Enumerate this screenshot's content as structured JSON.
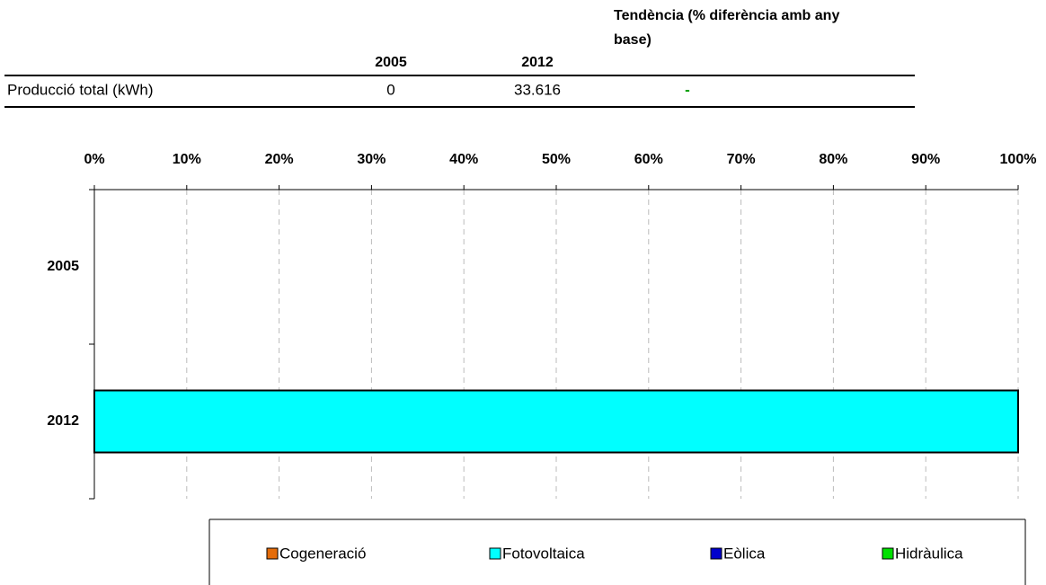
{
  "table": {
    "columns": [
      "2005",
      "2012",
      "Tendència (% diferència amb any base)"
    ],
    "rows": [
      [
        "Producció total (kWh)",
        "0",
        "33.616",
        "-"
      ]
    ]
  },
  "chart_data": {
    "type": "stacked_bar_horizontal",
    "categories": [
      "2005",
      "2012"
    ],
    "series": [
      {
        "name": "Cogeneració",
        "color": "#e46c0a",
        "values": [
          0,
          0
        ]
      },
      {
        "name": "Fotovoltaica",
        "color": "#00ffff",
        "values": [
          0,
          100
        ]
      },
      {
        "name": "Eòlica",
        "color": "#0000cc",
        "values": [
          0,
          0
        ]
      },
      {
        "name": "Hidràulica",
        "color": "#00e000",
        "values": [
          0,
          0
        ]
      }
    ],
    "xlim": [
      0,
      100
    ],
    "xticks": [
      {
        "value": 0,
        "label": "0%"
      },
      {
        "value": 10,
        "label": "10%"
      },
      {
        "value": 20,
        "label": "20%"
      },
      {
        "value": 30,
        "label": "30%"
      },
      {
        "value": 40,
        "label": "40%"
      },
      {
        "value": 50,
        "label": "50%"
      },
      {
        "value": 60,
        "label": "60%"
      },
      {
        "value": 70,
        "label": "70%"
      },
      {
        "value": 80,
        "label": "80%"
      },
      {
        "value": 90,
        "label": "90%"
      },
      {
        "value": 100,
        "label": "100%"
      }
    ],
    "grid": true,
    "legend": "bottom"
  }
}
